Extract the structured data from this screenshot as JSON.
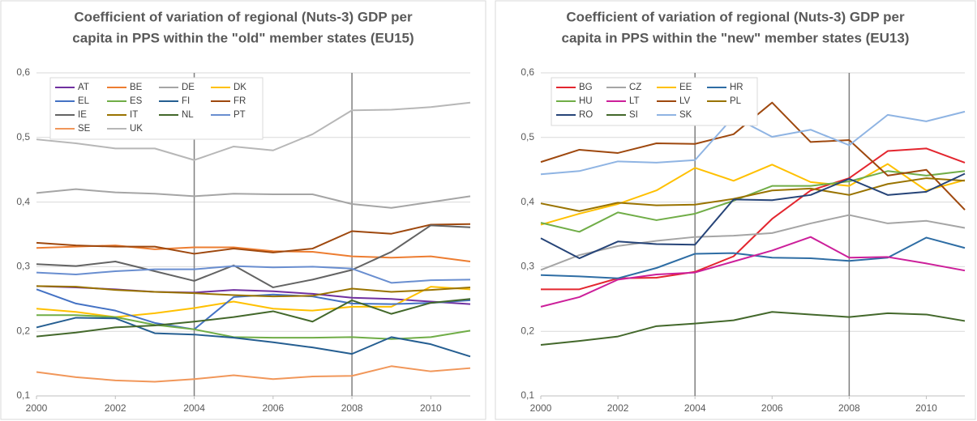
{
  "chart_data": [
    {
      "type": "line",
      "title": [
        "Coefficient of variation of regional (Nuts-3) GDP per",
        "capita in PPS within the \"old\" member states (EU15)"
      ],
      "x": [
        2000,
        2001,
        2002,
        2003,
        2004,
        2005,
        2006,
        2007,
        2008,
        2009,
        2010,
        2011
      ],
      "xlim": [
        2000,
        2011
      ],
      "xticks": [
        2000,
        2002,
        2004,
        2006,
        2008,
        2010
      ],
      "ylim": [
        0.1,
        0.6
      ],
      "yticks": [
        {
          "value": 0.1,
          "label": "0,1"
        },
        {
          "value": 0.2,
          "label": "0,2"
        },
        {
          "value": 0.3,
          "label": "0,3"
        },
        {
          "value": 0.4,
          "label": "0,4"
        },
        {
          "value": 0.5,
          "label": "0,5"
        },
        {
          "value": 0.6,
          "label": "0,6"
        }
      ],
      "grid": true,
      "vlines": [
        2004,
        2008
      ],
      "legend": "top-left",
      "series": [
        {
          "name": "AT",
          "color": "#7030a0",
          "values": [
            0.27,
            0.268,
            0.265,
            0.261,
            0.26,
            0.264,
            0.262,
            0.258,
            0.252,
            0.25,
            0.246,
            0.242
          ]
        },
        {
          "name": "BE",
          "color": "#ed7d31",
          "values": [
            0.329,
            0.331,
            0.333,
            0.327,
            0.33,
            0.33,
            0.324,
            0.323,
            0.316,
            0.314,
            0.316,
            0.308
          ]
        },
        {
          "name": "DE",
          "color": "#a5a5a5",
          "values": [
            0.414,
            0.42,
            0.415,
            0.413,
            0.409,
            0.413,
            0.412,
            0.412,
            0.397,
            0.391,
            0.4,
            0.409
          ]
        },
        {
          "name": "DK",
          "color": "#ffc000",
          "values": [
            0.235,
            0.23,
            0.222,
            0.228,
            0.236,
            0.246,
            0.235,
            0.232,
            0.238,
            0.238,
            0.269,
            0.265
          ]
        },
        {
          "name": "EL",
          "color": "#4472c4",
          "values": [
            0.265,
            0.243,
            0.232,
            0.213,
            0.203,
            0.253,
            0.257,
            0.254,
            0.243,
            0.242,
            0.244,
            0.248
          ]
        },
        {
          "name": "ES",
          "color": "#70ad47",
          "values": [
            0.225,
            0.225,
            0.222,
            0.21,
            0.203,
            0.191,
            0.19,
            0.19,
            0.191,
            0.188,
            0.191,
            0.201
          ]
        },
        {
          "name": "FI",
          "color": "#255e91",
          "values": [
            0.206,
            0.221,
            0.22,
            0.197,
            0.195,
            0.19,
            0.183,
            0.175,
            0.165,
            0.191,
            0.18,
            0.161
          ]
        },
        {
          "name": "FR",
          "color": "#9e480e",
          "values": [
            0.337,
            0.333,
            0.331,
            0.331,
            0.32,
            0.328,
            0.322,
            0.328,
            0.355,
            0.351,
            0.365,
            0.366
          ]
        },
        {
          "name": "IE",
          "color": "#636363",
          "values": [
            0.304,
            0.301,
            0.308,
            0.293,
            0.278,
            0.302,
            0.268,
            0.28,
            0.295,
            0.323,
            0.364,
            0.361
          ]
        },
        {
          "name": "IT",
          "color": "#997300",
          "values": [
            0.27,
            0.269,
            0.264,
            0.261,
            0.259,
            0.256,
            0.254,
            0.255,
            0.266,
            0.261,
            0.264,
            0.268
          ]
        },
        {
          "name": "NL",
          "color": "#43682b",
          "values": [
            0.192,
            0.198,
            0.206,
            0.209,
            0.215,
            0.222,
            0.231,
            0.215,
            0.248,
            0.227,
            0.244,
            0.25
          ]
        },
        {
          "name": "PT",
          "color": "#698ed0",
          "values": [
            0.291,
            0.288,
            0.293,
            0.296,
            0.296,
            0.301,
            0.299,
            0.3,
            0.297,
            0.275,
            0.279,
            0.28
          ]
        },
        {
          "name": "SE",
          "color": "#f1975a",
          "values": [
            0.137,
            0.129,
            0.124,
            0.122,
            0.126,
            0.132,
            0.126,
            0.13,
            0.131,
            0.146,
            0.138,
            0.143
          ]
        },
        {
          "name": "UK",
          "color": "#b7b7b7",
          "values": [
            0.497,
            0.491,
            0.483,
            0.483,
            0.465,
            0.486,
            0.48,
            0.505,
            0.542,
            0.543,
            0.547,
            0.554
          ]
        }
      ]
    },
    {
      "type": "line",
      "title": [
        "Coefficient of variation of regional (Nuts-3) GDP per",
        "capita in PPS within the \"new\" member states (EU13)"
      ],
      "x": [
        2000,
        2001,
        2002,
        2003,
        2004,
        2005,
        2006,
        2007,
        2008,
        2009,
        2010,
        2011
      ],
      "xlim": [
        2000,
        2011
      ],
      "xticks": [
        2000,
        2002,
        2004,
        2006,
        2008,
        2010
      ],
      "ylim": [
        0.1,
        0.6
      ],
      "yticks": [
        {
          "value": 0.1,
          "label": "0,1"
        },
        {
          "value": 0.2,
          "label": "0,2"
        },
        {
          "value": 0.3,
          "label": "0,3"
        },
        {
          "value": 0.4,
          "label": "0,4"
        },
        {
          "value": 0.5,
          "label": "0,5"
        },
        {
          "value": 0.6,
          "label": "0,6"
        }
      ],
      "grid": true,
      "vlines": [
        2004,
        2008
      ],
      "legend": "top-left",
      "series": [
        {
          "name": "BG",
          "color": "#e3262f",
          "values": [
            0.265,
            0.265,
            0.282,
            0.283,
            0.292,
            0.316,
            0.374,
            0.418,
            0.437,
            0.479,
            0.483,
            0.461
          ]
        },
        {
          "name": "CZ",
          "color": "#a5a5a5",
          "values": [
            0.295,
            0.318,
            0.332,
            0.34,
            0.346,
            0.348,
            0.352,
            0.367,
            0.38,
            0.367,
            0.371,
            0.36
          ]
        },
        {
          "name": "EE",
          "color": "#ffc000",
          "values": [
            0.365,
            0.382,
            0.397,
            0.418,
            0.453,
            0.433,
            0.458,
            0.431,
            0.425,
            0.459,
            0.418,
            0.434
          ]
        },
        {
          "name": "HR",
          "color": "#2e6da4",
          "values": [
            0.287,
            0.285,
            0.282,
            0.298,
            0.32,
            0.321,
            0.314,
            0.313,
            0.309,
            0.314,
            0.345,
            0.329
          ]
        },
        {
          "name": "HU",
          "color": "#70ad47",
          "values": [
            0.368,
            0.354,
            0.384,
            0.372,
            0.382,
            0.402,
            0.425,
            0.425,
            0.432,
            0.448,
            0.441,
            0.448
          ]
        },
        {
          "name": "LT",
          "color": "#cc1f9a",
          "values": [
            0.238,
            0.253,
            0.28,
            0.288,
            0.291,
            0.308,
            0.325,
            0.346,
            0.314,
            0.315,
            0.305,
            0.294
          ]
        },
        {
          "name": "LV",
          "color": "#9e480e",
          "values": [
            0.462,
            0.481,
            0.476,
            0.491,
            0.49,
            0.505,
            0.554,
            0.493,
            0.496,
            0.441,
            0.45,
            0.388
          ]
        },
        {
          "name": "PL",
          "color": "#997300",
          "values": [
            0.398,
            0.386,
            0.399,
            0.395,
            0.396,
            0.405,
            0.418,
            0.421,
            0.411,
            0.428,
            0.437,
            0.433
          ]
        },
        {
          "name": "RO",
          "color": "#264478",
          "values": [
            0.344,
            0.313,
            0.339,
            0.335,
            0.334,
            0.404,
            0.403,
            0.411,
            0.436,
            0.411,
            0.416,
            0.444
          ]
        },
        {
          "name": "SI",
          "color": "#43682b",
          "values": [
            0.179,
            0.185,
            0.192,
            0.208,
            0.212,
            0.217,
            0.23,
            0.226,
            0.222,
            0.228,
            0.226,
            0.216
          ]
        },
        {
          "name": "SK",
          "color": "#8fb4e3",
          "values": [
            0.443,
            0.448,
            0.463,
            0.461,
            0.465,
            0.532,
            0.501,
            0.512,
            0.488,
            0.535,
            0.525,
            0.54
          ]
        }
      ]
    }
  ]
}
